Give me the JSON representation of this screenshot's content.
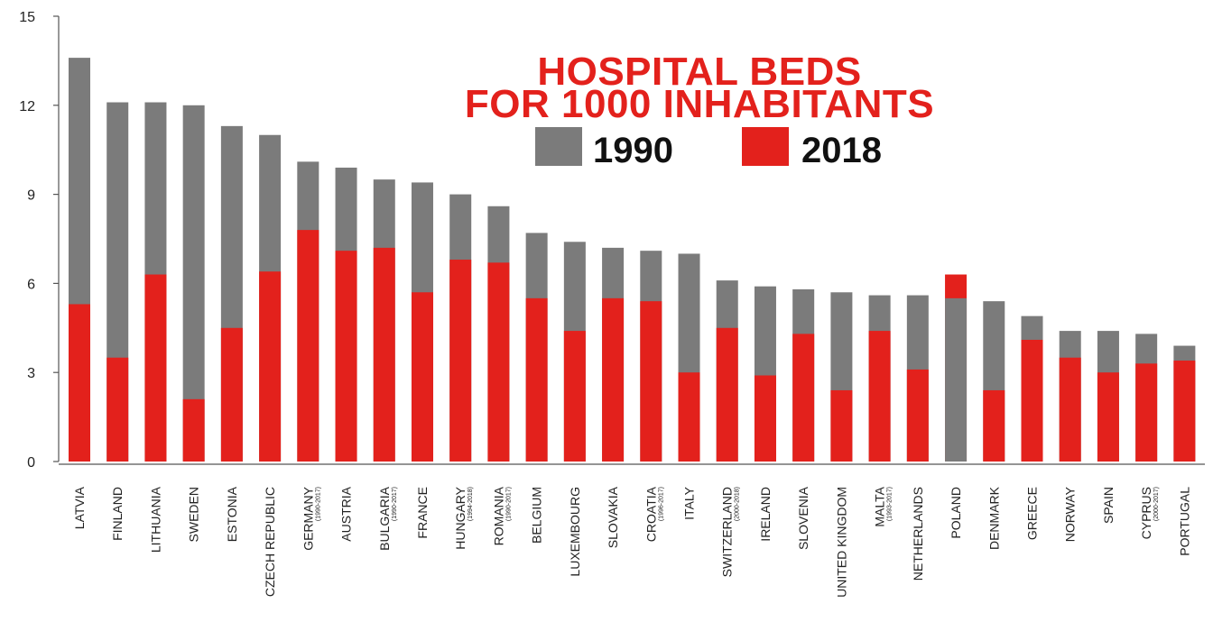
{
  "chart_data": {
    "type": "bar",
    "title_lines": [
      "HOSPITAL BEDS",
      "FOR 1000 INHABITANTS"
    ],
    "legend_position": "top-center",
    "colors": {
      "1990": "#7b7b7b",
      "2018": "#e3211c",
      "axis": "#555555"
    },
    "ylim": [
      0,
      15
    ],
    "yticks": [
      "0",
      "3",
      "6",
      "9",
      "12",
      "15"
    ],
    "categories": [
      "LATVIA",
      "FINLAND",
      "LITHUANIA",
      "SWEDEN",
      "ESTONIA",
      "CZECH REPUBLIC",
      "GERMANY",
      "AUSTRIA",
      "BULGARIA",
      "FRANCE",
      "HUNGARY",
      "ROMANIA",
      "BELGIUM",
      "LUXEMBOURG",
      "SLOVAKIA",
      "CROATIA",
      "ITALY",
      "SWITZERLAND",
      "IRELAND",
      "SLOVENIA",
      "UNITED KINGDOM",
      "MALTA",
      "NETHERLANDS",
      "POLAND",
      "DENMARK",
      "GREECE",
      "NORWAY",
      "SPAIN",
      "CYPRUS",
      "PORTUGAL"
    ],
    "category_notes": [
      "",
      "",
      "",
      "",
      "",
      "",
      "(1990-2017)",
      "",
      "(1990-2017)",
      "",
      "(1994-2018)",
      "(1990-2017)",
      "",
      "",
      "",
      "(1996-2017)",
      "",
      "(2000-2018)",
      "",
      "",
      "",
      "(1993-2017)",
      "",
      "",
      "",
      "",
      "",
      "",
      "(2000-2017)",
      ""
    ],
    "series": [
      {
        "name": "1990",
        "values": [
          13.6,
          12.1,
          12.1,
          12.0,
          11.3,
          11.0,
          10.1,
          9.9,
          9.5,
          9.4,
          9.0,
          8.6,
          7.7,
          7.4,
          7.2,
          7.1,
          7.0,
          6.1,
          5.9,
          5.8,
          5.7,
          5.6,
          5.6,
          5.5,
          5.4,
          4.9,
          4.4,
          4.4,
          4.3,
          3.9
        ]
      },
      {
        "name": "2018",
        "values": [
          5.3,
          3.5,
          6.3,
          2.1,
          4.5,
          6.4,
          7.8,
          7.1,
          7.2,
          5.7,
          6.8,
          6.7,
          5.5,
          4.4,
          5.5,
          5.4,
          3.0,
          4.5,
          2.9,
          4.3,
          2.4,
          4.4,
          3.1,
          6.3,
          2.4,
          4.1,
          3.5,
          3.0,
          3.3,
          3.4
        ]
      }
    ]
  }
}
